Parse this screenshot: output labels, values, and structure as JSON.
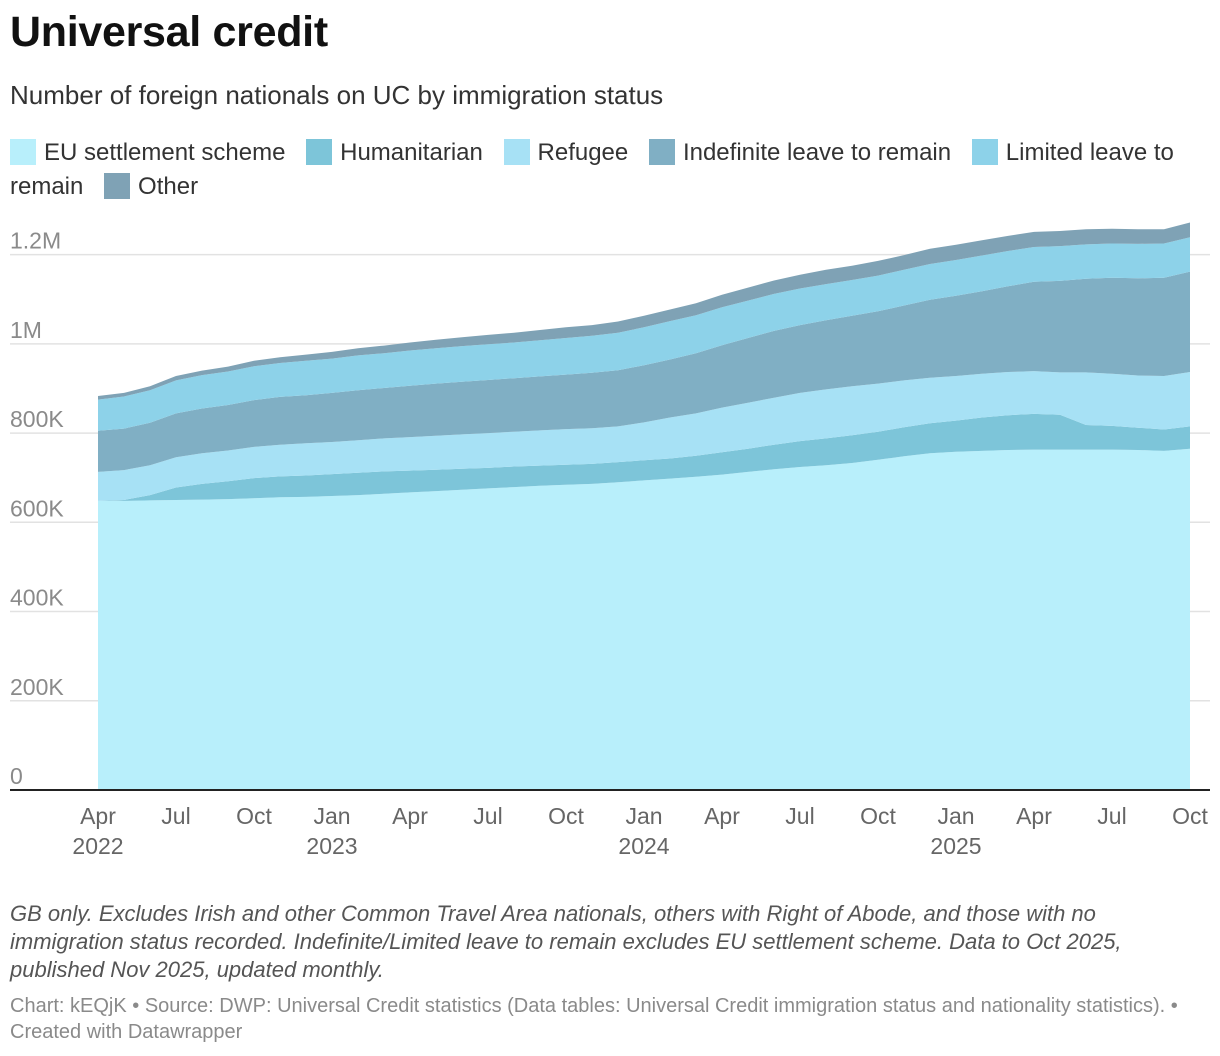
{
  "header": {
    "title": "Universal credit",
    "subtitle": "Number of foreign nationals on UC by immigration status"
  },
  "legend": [
    {
      "label": "EU settlement scheme",
      "color": "#b8effb"
    },
    {
      "label": "Humanitarian",
      "color": "#7dc5d9"
    },
    {
      "label": "Refugee",
      "color": "#a7e1f5"
    },
    {
      "label": "Indefinite leave to remain",
      "color": "#80afc4"
    },
    {
      "label": "Limited leave to remain",
      "color": "#8dd2e9"
    },
    {
      "label": "Other",
      "color": "#7fa2b5"
    }
  ],
  "chart_data": {
    "type": "area",
    "stacked": true,
    "title": "Universal credit",
    "subtitle": "Number of foreign nationals on UC by immigration status",
    "xlabel": "",
    "ylabel": "",
    "ylim": [
      0,
      1300000
    ],
    "grid": true,
    "x_start": "Apr 2022",
    "x_end": "Oct 2025",
    "period": "monthly",
    "y_ticks": [
      {
        "value": 0,
        "label": "0"
      },
      {
        "value": 200000,
        "label": "200K"
      },
      {
        "value": 400000,
        "label": "400K"
      },
      {
        "value": 600000,
        "label": "600K"
      },
      {
        "value": 800000,
        "label": "800K"
      },
      {
        "value": 1000000,
        "label": "1M"
      },
      {
        "value": 1200000,
        "label": "1.2M"
      }
    ],
    "x_ticks": [
      {
        "index": 0,
        "label": "Apr",
        "year": "2022"
      },
      {
        "index": 3,
        "label": "Jul",
        "year": ""
      },
      {
        "index": 6,
        "label": "Oct",
        "year": ""
      },
      {
        "index": 9,
        "label": "Jan",
        "year": "2023"
      },
      {
        "index": 12,
        "label": "Apr",
        "year": ""
      },
      {
        "index": 15,
        "label": "Jul",
        "year": ""
      },
      {
        "index": 18,
        "label": "Oct",
        "year": ""
      },
      {
        "index": 21,
        "label": "Jan",
        "year": "2024"
      },
      {
        "index": 24,
        "label": "Apr",
        "year": ""
      },
      {
        "index": 27,
        "label": "Jul",
        "year": ""
      },
      {
        "index": 30,
        "label": "Oct",
        "year": ""
      },
      {
        "index": 33,
        "label": "Jan",
        "year": "2025"
      },
      {
        "index": 36,
        "label": "Apr",
        "year": ""
      },
      {
        "index": 39,
        "label": "Jul",
        "year": ""
      },
      {
        "index": 42,
        "label": "Oct",
        "year": ""
      }
    ],
    "series": [
      {
        "name": "EU settlement scheme",
        "color": "#b8effb",
        "values": [
          648000,
          648000,
          649000,
          650000,
          651000,
          652000,
          654000,
          656000,
          657000,
          659000,
          661000,
          664000,
          667000,
          670000,
          673000,
          676000,
          679000,
          682000,
          684000,
          686000,
          690000,
          694000,
          698000,
          702000,
          707000,
          713000,
          719000,
          724000,
          728000,
          733000,
          740000,
          748000,
          755000,
          758000,
          760000,
          762000,
          763000,
          763000,
          763000,
          763000,
          762000,
          760000,
          765000
        ]
      },
      {
        "name": "Humanitarian",
        "color": "#7dc5d9",
        "values": [
          0,
          2000,
          12000,
          28000,
          35000,
          40000,
          45000,
          47000,
          48000,
          49000,
          50000,
          50000,
          49000,
          48000,
          47000,
          46000,
          46000,
          45000,
          45000,
          45000,
          45000,
          45000,
          45000,
          47000,
          50000,
          52000,
          55000,
          58000,
          60000,
          62000,
          63000,
          65000,
          67000,
          70000,
          75000,
          78000,
          80000,
          78000,
          55000,
          53000,
          50000,
          48000,
          50000
        ]
      },
      {
        "name": "Refugee",
        "color": "#a7e1f5",
        "values": [
          65000,
          67000,
          67000,
          68000,
          69000,
          69000,
          70000,
          71000,
          72000,
          72000,
          73000,
          74000,
          75000,
          76000,
          77000,
          78000,
          78000,
          79000,
          80000,
          80000,
          80000,
          85000,
          92000,
          95000,
          100000,
          103000,
          105000,
          108000,
          110000,
          110000,
          108000,
          105000,
          102000,
          100000,
          98000,
          97000,
          96000,
          95000,
          118000,
          117000,
          117000,
          120000,
          122000
        ]
      },
      {
        "name": "Indefinite leave to remain",
        "color": "#80afc4",
        "values": [
          92000,
          93000,
          95000,
          98000,
          100000,
          102000,
          105000,
          107000,
          108000,
          110000,
          112000,
          113000,
          115000,
          117000,
          118000,
          119000,
          120000,
          121000,
          122000,
          124000,
          126000,
          128000,
          130000,
          135000,
          140000,
          145000,
          150000,
          152000,
          155000,
          158000,
          162000,
          168000,
          175000,
          180000,
          185000,
          192000,
          200000,
          205000,
          210000,
          215000,
          218000,
          220000,
          225000
        ]
      },
      {
        "name": "Limited leave to remain",
        "color": "#8dd2e9",
        "values": [
          70000,
          72000,
          73000,
          74000,
          75000,
          75000,
          76000,
          76000,
          77000,
          77000,
          78000,
          78000,
          79000,
          79000,
          80000,
          80000,
          80000,
          81000,
          82000,
          83000,
          84000,
          85000,
          86000,
          85000,
          85000,
          84000,
          83000,
          82000,
          81000,
          80000,
          80000,
          80000,
          80000,
          80000,
          80000,
          79000,
          78000,
          78000,
          77000,
          77000,
          77000,
          77000,
          77000
        ]
      },
      {
        "name": "Other",
        "color": "#7fa2b5",
        "values": [
          8000,
          8000,
          9000,
          10000,
          10000,
          11000,
          12000,
          13000,
          14000,
          15000,
          16000,
          17000,
          18000,
          19000,
          20000,
          21000,
          22000,
          23000,
          24000,
          24000,
          25000,
          26000,
          26000,
          27000,
          28000,
          29000,
          30000,
          31000,
          32000,
          32000,
          33000,
          33000,
          34000,
          34000,
          34000,
          34000,
          34000,
          34000,
          34000,
          33000,
          33000,
          32000,
          33000
        ]
      }
    ]
  },
  "notes": "GB only. Excludes Irish and other Common Travel Area nationals, others with Right of Abode, and those with no immigration status recorded. Indefinite/Limited leave to remain excludes EU settlement scheme. Data to Oct 2025, published Nov 2025, updated monthly.",
  "credit": "Chart: kEQjK • Source: DWP: Universal Credit statistics (Data tables: Universal Credit immigration status and nationality statistics). • Created with Datawrapper"
}
